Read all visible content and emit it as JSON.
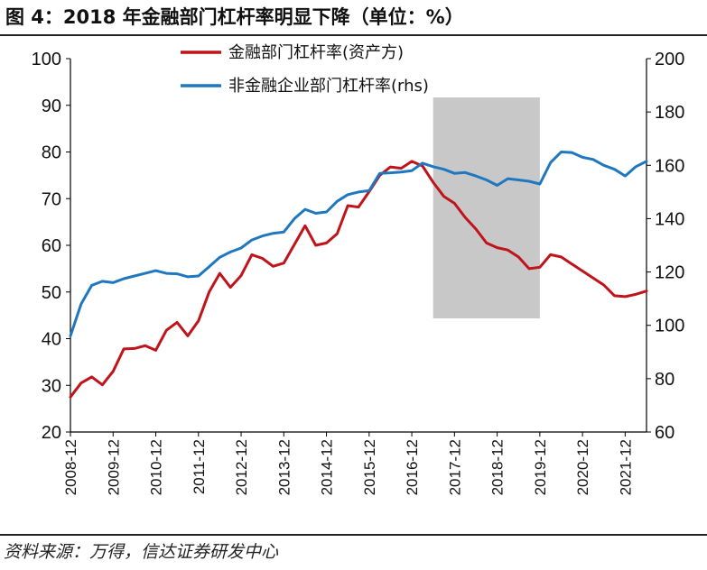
{
  "title": "图 4：2018 年金融部门杠杆率明显下降（单位：%）",
  "source": "资料来源：万得，信达证券研发中心",
  "chart_data": {
    "type": "line",
    "title": "图 4：2018 年金融部门杠杆率明显下降（单位：%）",
    "y_left": {
      "min": 20,
      "max": 100,
      "ticks": [
        20,
        30,
        40,
        50,
        60,
        70,
        80,
        90,
        100
      ]
    },
    "y_right": {
      "min": 60,
      "max": 200,
      "ticks": [
        60,
        80,
        100,
        120,
        140,
        160,
        180,
        200
      ]
    },
    "x_ticks": [
      "2008-12",
      "2009-12",
      "2010-12",
      "2011-12",
      "2012-12",
      "2013-12",
      "2014-12",
      "2015-12",
      "2016-12",
      "2017-12",
      "2018-12",
      "2019-12",
      "2020-12",
      "2021-12"
    ],
    "x_range": [
      2008.75,
      2022.25
    ],
    "shaded_region": {
      "from": 2017.25,
      "to": 2019.75
    },
    "legend_position": "top-center",
    "grid": false,
    "series": [
      {
        "name": "金融部门杠杆率(资产方)",
        "axis": "left",
        "color": "#C0131A",
        "x": [
          2008.75,
          2009.0,
          2009.25,
          2009.5,
          2009.75,
          2010.0,
          2010.25,
          2010.5,
          2010.75,
          2011.0,
          2011.25,
          2011.5,
          2011.75,
          2012.0,
          2012.25,
          2012.5,
          2012.75,
          2013.0,
          2013.25,
          2013.5,
          2013.75,
          2014.0,
          2014.25,
          2014.5,
          2014.75,
          2015.0,
          2015.25,
          2015.5,
          2015.75,
          2016.0,
          2016.25,
          2016.5,
          2016.75,
          2017.0,
          2017.25,
          2017.5,
          2017.75,
          2018.0,
          2018.25,
          2018.5,
          2018.75,
          2019.0,
          2019.25,
          2019.5,
          2019.75,
          2020.0,
          2020.25,
          2020.5,
          2020.75,
          2021.0,
          2021.25,
          2021.5,
          2021.75,
          2022.0,
          2022.25
        ],
        "values": [
          27.5,
          30.5,
          31.8,
          30.1,
          33.0,
          37.8,
          37.9,
          38.5,
          37.5,
          41.8,
          43.5,
          40.6,
          43.8,
          50.0,
          54.0,
          51.0,
          53.5,
          58.0,
          57.2,
          55.5,
          56.2,
          60.2,
          64.2,
          60.0,
          60.5,
          62.5,
          68.5,
          68.2,
          71.5,
          75.0,
          76.8,
          76.5,
          78.0,
          77.0,
          73.5,
          70.5,
          69.0,
          66.0,
          63.5,
          60.5,
          59.5,
          59.0,
          57.5,
          55.0,
          55.3,
          58.0,
          57.5,
          56.0,
          54.5,
          53.0,
          51.5,
          49.2,
          49.0,
          49.5,
          50.2
        ]
      },
      {
        "name": "非金融企业部门杠杆率(rhs)",
        "axis": "right",
        "color": "#1F78BF",
        "x": [
          2008.75,
          2009.0,
          2009.25,
          2009.5,
          2009.75,
          2010.0,
          2010.25,
          2010.5,
          2010.75,
          2011.0,
          2011.25,
          2011.5,
          2011.75,
          2012.0,
          2012.25,
          2012.5,
          2012.75,
          2013.0,
          2013.25,
          2013.5,
          2013.75,
          2014.0,
          2014.25,
          2014.5,
          2014.75,
          2015.0,
          2015.25,
          2015.5,
          2015.75,
          2016.0,
          2016.25,
          2016.5,
          2016.75,
          2017.0,
          2017.25,
          2017.5,
          2017.75,
          2018.0,
          2018.25,
          2018.5,
          2018.75,
          2019.0,
          2019.25,
          2019.5,
          2019.75,
          2020.0,
          2020.25,
          2020.5,
          2020.75,
          2021.0,
          2021.25,
          2021.5,
          2021.75,
          2022.0,
          2022.25
        ],
        "values": [
          96,
          108,
          115,
          116.5,
          116,
          117.5,
          118.5,
          119.5,
          120.5,
          119.5,
          119.3,
          118.2,
          118.5,
          122,
          125.5,
          127.5,
          129,
          132,
          133.5,
          134.5,
          135,
          140,
          143.5,
          142,
          142.5,
          146.5,
          149,
          150,
          150.5,
          157,
          157.2,
          157.5,
          158,
          160.8,
          159.5,
          158.5,
          157,
          157.3,
          156,
          154.5,
          152.5,
          155,
          154.5,
          154,
          153,
          161,
          165,
          164.8,
          163,
          162.2,
          160,
          158.5,
          156,
          159.5,
          161.5
        ]
      }
    ]
  }
}
